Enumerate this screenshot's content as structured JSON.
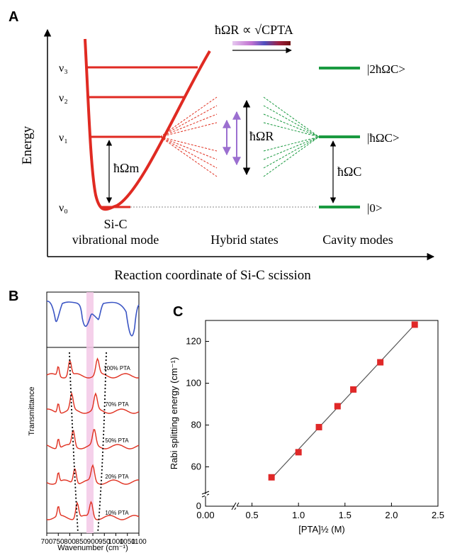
{
  "panel_a": {
    "label": "A",
    "ylabel": "Energy",
    "xlabel": "Reaction coordinate of Si-C scission",
    "levels": [
      "ν₃",
      "ν₂",
      "ν₁",
      "ν₀"
    ],
    "omega_m": "ħΩm",
    "omega_r": "ħΩR",
    "omega_c": "ħΩC",
    "rabi_scaling": "ħΩR ∝ √CPTA",
    "cavity_levels": [
      "|2ħΩC>",
      "|ħΩC>",
      "|0>"
    ],
    "section_labels": {
      "vib_line1": "Si-C",
      "vib_line2": "vibrational mode",
      "hybrid": "Hybrid states",
      "cavity": "Cavity modes"
    }
  },
  "panel_b": {
    "label": "B",
    "ylabel": "Transmittance",
    "xlabel": "Wavenumber (cm⁻¹)",
    "x_ticks": [
      "700",
      "750",
      "800",
      "850",
      "900",
      "950",
      "1000",
      "1050",
      "1100"
    ],
    "traces": [
      "100% PTA",
      "70% PTA",
      "50% PTA",
      "20% PTA",
      "10% PTA"
    ],
    "colors": {
      "ir_reference": "#3b55c4",
      "trace": "#e03020",
      "band": "#f3c8e6"
    }
  },
  "chart_data": [
    {
      "type": "scatter",
      "title": "",
      "panel": "C",
      "xlabel": "[PTA]½ (M)",
      "ylabel": "Rabi splitting energy (cm⁻¹)",
      "xlim": [
        0,
        2.5
      ],
      "ylim_broken": [
        0,
        50,
        130
      ],
      "x_ticks": [
        "0.00",
        "0.5",
        "1.0",
        "1.5",
        "2.0",
        "2.5"
      ],
      "y_ticks": [
        "0",
        "60",
        "80",
        "100",
        "120"
      ],
      "series": [
        {
          "x": [
            0.71,
            1.0,
            1.22,
            1.42,
            1.59,
            1.88,
            2.25
          ],
          "y": [
            55,
            67,
            79,
            89,
            97,
            110,
            128
          ]
        }
      ],
      "fit_line": {
        "x": [
          0.71,
          2.25
        ],
        "y": [
          54.5,
          128
        ]
      },
      "marker_color": "#e02828",
      "line_color": "#555555"
    }
  ]
}
